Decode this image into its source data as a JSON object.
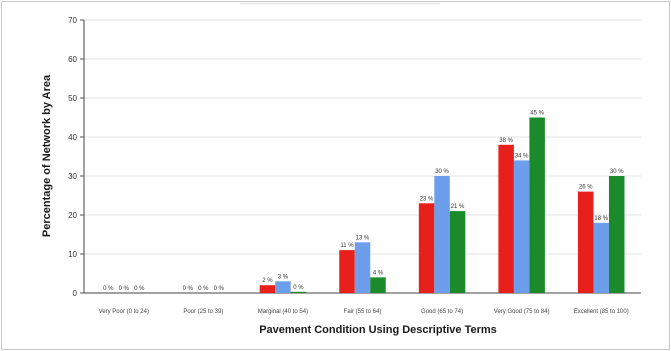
{
  "chart_data": {
    "type": "bar",
    "title": "",
    "xlabel": "Pavement Condition Using Descriptive Terms",
    "ylabel": "Percentage of Network by Area",
    "ylim": [
      0,
      70
    ],
    "yticks": [
      0,
      10,
      20,
      30,
      40,
      50,
      60,
      70
    ],
    "grid": true,
    "legend": "none",
    "categories": [
      "Very Poor (0 to 24)",
      "Poor (25 to 39)",
      "Marginal (40 to 54)",
      "Fair (55 to 64)",
      "Good (65 to 74)",
      "Very Good (75 to 84)",
      "Excellent (85 to 100)"
    ],
    "series": [
      {
        "color": "#e8201c",
        "values": [
          0,
          0,
          2,
          11,
          23,
          38,
          26
        ],
        "labels": [
          "0 %",
          "0 %",
          "2 %",
          "11 %",
          "23 %",
          "38 %",
          "26 %"
        ]
      },
      {
        "color": "#6d9eeb",
        "values": [
          0,
          0,
          3,
          13,
          30,
          34,
          18
        ],
        "labels": [
          "0 %",
          "0 %",
          "3 %",
          "13 %",
          "30 %",
          "34 %",
          "18 %"
        ]
      },
      {
        "color": "#1a8a2a",
        "values": [
          0,
          0,
          0.3,
          4,
          21,
          45,
          30
        ],
        "labels": [
          "0 %",
          "0 %",
          "0 %",
          "4 %",
          "21 %",
          "45 %",
          "30 %"
        ]
      }
    ]
  }
}
